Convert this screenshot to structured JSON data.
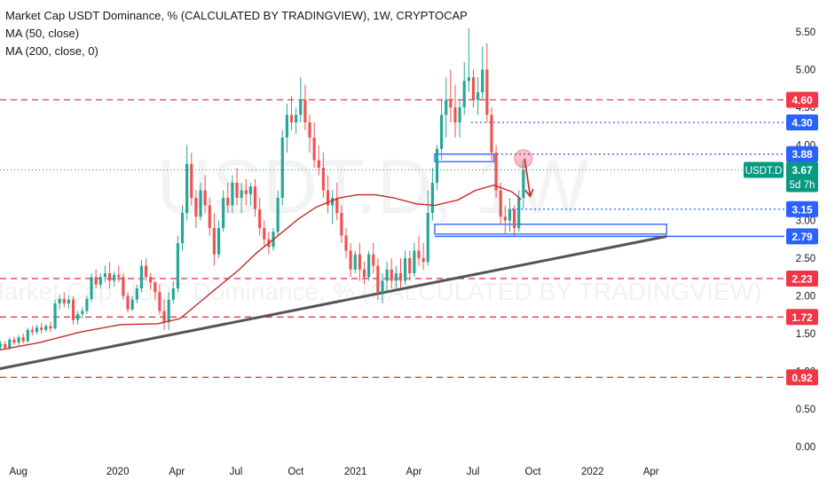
{
  "header": {
    "title": "Market Cap USDT Dominance, % (CALCULATED BY TRADINGVIEW), 1W, CRYPTOCAP",
    "indicators": [
      "MA (50, close)",
      "MA (200, close, 0)"
    ]
  },
  "watermark": {
    "symbol": "USDT.D, 1W",
    "description": "Market Cap USDT Dominance, % (CALCULATED BY TRADINGVIEW)"
  },
  "colors": {
    "up": "#26a69a",
    "down": "#ef5350",
    "ma_red": "#c62828",
    "level_red": "#f23645",
    "level_blue": "#2962ff",
    "trendline": "#555555",
    "current_badge": "#089981"
  },
  "chart_data": {
    "type": "candlestick",
    "timeframe": "1W",
    "symbol": "USDT.D",
    "ylim": [
      0,
      5.7
    ],
    "y_ticks": [
      "0.00",
      "0.50",
      "1.00",
      "1.50",
      "2.00",
      "2.50",
      "3.00",
      "3.50",
      "4.00",
      "4.50",
      "5.00",
      "5.50"
    ],
    "x_ticks": [
      "Aug",
      "2020",
      "Apr",
      "Jul",
      "Oct",
      "2021",
      "Apr",
      "Jul",
      "Oct",
      "2022",
      "Apr"
    ],
    "x_tick_dates": [
      "2019-08-01",
      "2020-01-01",
      "2020-04-01",
      "2020-07-01",
      "2020-10-01",
      "2021-01-01",
      "2021-04-01",
      "2021-07-01",
      "2021-10-01",
      "2022-01-01",
      "2022-04-01"
    ],
    "candles": [
      [
        "2019-07-01",
        1.33,
        1.4,
        1.29,
        1.36
      ],
      [
        "2019-07-08",
        1.36,
        1.4,
        1.28,
        1.31
      ],
      [
        "2019-07-15",
        1.31,
        1.45,
        1.28,
        1.42
      ],
      [
        "2019-07-22",
        1.42,
        1.46,
        1.35,
        1.38
      ],
      [
        "2019-07-29",
        1.38,
        1.48,
        1.34,
        1.45
      ],
      [
        "2019-08-05",
        1.45,
        1.5,
        1.37,
        1.4
      ],
      [
        "2019-08-12",
        1.4,
        1.58,
        1.38,
        1.55
      ],
      [
        "2019-08-19",
        1.55,
        1.6,
        1.48,
        1.52
      ],
      [
        "2019-08-26",
        1.52,
        1.62,
        1.49,
        1.58
      ],
      [
        "2019-09-02",
        1.58,
        1.64,
        1.5,
        1.55
      ],
      [
        "2019-09-09",
        1.55,
        1.63,
        1.52,
        1.6
      ],
      [
        "2019-09-16",
        1.6,
        1.66,
        1.52,
        1.57
      ],
      [
        "2019-09-23",
        1.57,
        1.95,
        1.55,
        1.9
      ],
      [
        "2019-09-30",
        1.9,
        2.02,
        1.82,
        1.96
      ],
      [
        "2019-10-07",
        1.96,
        2.05,
        1.85,
        1.9
      ],
      [
        "2019-10-14",
        1.9,
        2.0,
        1.83,
        1.95
      ],
      [
        "2019-10-21",
        1.95,
        2.0,
        1.62,
        1.68
      ],
      [
        "2019-10-28",
        1.68,
        1.8,
        1.62,
        1.76
      ],
      [
        "2019-11-04",
        1.76,
        1.85,
        1.7,
        1.8
      ],
      [
        "2019-11-11",
        1.8,
        2.0,
        1.76,
        1.96
      ],
      [
        "2019-11-18",
        1.96,
        2.3,
        1.92,
        2.25
      ],
      [
        "2019-11-25",
        2.25,
        2.35,
        2.1,
        2.15
      ],
      [
        "2019-12-02",
        2.15,
        2.3,
        2.1,
        2.25
      ],
      [
        "2019-12-09",
        2.25,
        2.4,
        2.18,
        2.3
      ],
      [
        "2019-12-16",
        2.3,
        2.45,
        2.1,
        2.2
      ],
      [
        "2019-12-23",
        2.2,
        2.32,
        2.12,
        2.28
      ],
      [
        "2019-12-30",
        2.28,
        2.4,
        2.18,
        2.25
      ],
      [
        "2020-01-06",
        2.25,
        2.3,
        1.95,
        2.0
      ],
      [
        "2020-01-13",
        2.0,
        2.05,
        1.78,
        1.82
      ],
      [
        "2020-01-20",
        1.82,
        2.0,
        1.8,
        1.95
      ],
      [
        "2020-01-27",
        1.95,
        2.15,
        1.9,
        2.1
      ],
      [
        "2020-02-03",
        2.1,
        2.48,
        2.05,
        2.4
      ],
      [
        "2020-02-10",
        2.4,
        2.5,
        2.2,
        2.25
      ],
      [
        "2020-02-17",
        2.25,
        2.3,
        2.08,
        2.18
      ],
      [
        "2020-02-24",
        2.18,
        2.2,
        1.95,
        2.05
      ],
      [
        "2020-03-02",
        2.05,
        2.15,
        1.75,
        1.8
      ],
      [
        "2020-03-09",
        1.8,
        1.95,
        1.55,
        1.65
      ],
      [
        "2020-03-16",
        1.65,
        2.05,
        1.55,
        1.95
      ],
      [
        "2020-03-23",
        1.95,
        2.2,
        1.9,
        2.1
      ],
      [
        "2020-03-30",
        2.1,
        2.8,
        2.05,
        2.7
      ],
      [
        "2020-04-06",
        2.7,
        3.2,
        2.6,
        3.1
      ],
      [
        "2020-04-13",
        3.1,
        4.0,
        3.0,
        3.75
      ],
      [
        "2020-04-20",
        3.75,
        3.9,
        3.2,
        3.3
      ],
      [
        "2020-04-27",
        3.3,
        3.4,
        2.9,
        3.05
      ],
      [
        "2020-05-04",
        3.05,
        3.5,
        3.0,
        3.4
      ],
      [
        "2020-05-11",
        3.4,
        3.6,
        3.1,
        3.2
      ],
      [
        "2020-05-18",
        3.2,
        3.3,
        2.8,
        2.9
      ],
      [
        "2020-05-25",
        2.9,
        3.1,
        2.4,
        2.55
      ],
      [
        "2020-06-01",
        2.55,
        3.0,
        2.5,
        2.9
      ],
      [
        "2020-06-08",
        2.9,
        3.4,
        2.85,
        3.3
      ],
      [
        "2020-06-15",
        3.3,
        3.5,
        3.1,
        3.2
      ],
      [
        "2020-06-22",
        3.2,
        3.6,
        3.1,
        3.5
      ],
      [
        "2020-06-29",
        3.5,
        3.7,
        3.2,
        3.3
      ],
      [
        "2020-07-06",
        3.3,
        3.5,
        3.1,
        3.4
      ],
      [
        "2020-07-13",
        3.4,
        3.55,
        3.2,
        3.35
      ],
      [
        "2020-07-20",
        3.35,
        3.5,
        3.2,
        3.45
      ],
      [
        "2020-07-27",
        3.45,
        3.55,
        3.05,
        3.15
      ],
      [
        "2020-08-03",
        3.15,
        3.3,
        2.8,
        2.9
      ],
      [
        "2020-08-10",
        2.9,
        3.0,
        2.65,
        2.75
      ],
      [
        "2020-08-17",
        2.75,
        2.85,
        2.55,
        2.65
      ],
      [
        "2020-08-24",
        2.65,
        2.9,
        2.6,
        2.85
      ],
      [
        "2020-08-31",
        2.85,
        3.4,
        2.8,
        3.3
      ],
      [
        "2020-09-07",
        3.3,
        4.2,
        3.2,
        4.1
      ],
      [
        "2020-09-14",
        4.1,
        4.55,
        3.9,
        4.4
      ],
      [
        "2020-09-21",
        4.4,
        4.65,
        4.2,
        4.3
      ],
      [
        "2020-09-28",
        4.3,
        4.5,
        4.15,
        4.4
      ],
      [
        "2020-10-05",
        4.4,
        4.9,
        4.3,
        4.6
      ],
      [
        "2020-10-12",
        4.6,
        4.8,
        4.2,
        4.3
      ],
      [
        "2020-10-19",
        4.3,
        4.4,
        3.9,
        4.1
      ],
      [
        "2020-10-26",
        4.1,
        4.3,
        3.7,
        3.8
      ],
      [
        "2020-11-02",
        3.8,
        4.0,
        3.6,
        3.7
      ],
      [
        "2020-11-09",
        3.7,
        3.9,
        3.3,
        3.4
      ],
      [
        "2020-11-16",
        3.4,
        3.6,
        3.1,
        3.2
      ],
      [
        "2020-11-23",
        3.2,
        3.4,
        2.95,
        3.3
      ],
      [
        "2020-11-30",
        3.3,
        3.5,
        3.0,
        3.1
      ],
      [
        "2020-12-07",
        3.1,
        3.2,
        2.7,
        2.8
      ],
      [
        "2020-12-14",
        2.8,
        2.9,
        2.5,
        2.6
      ],
      [
        "2020-12-21",
        2.6,
        2.7,
        2.25,
        2.35
      ],
      [
        "2020-12-28",
        2.35,
        2.6,
        2.3,
        2.55
      ],
      [
        "2021-01-04",
        2.55,
        2.7,
        2.2,
        2.35
      ],
      [
        "2021-01-11",
        2.35,
        2.45,
        2.15,
        2.25
      ],
      [
        "2021-01-18",
        2.25,
        2.6,
        2.2,
        2.55
      ],
      [
        "2021-01-25",
        2.55,
        2.7,
        2.3,
        2.4
      ],
      [
        "2021-02-01",
        2.4,
        2.5,
        1.95,
        2.05
      ],
      [
        "2021-02-08",
        2.05,
        2.3,
        1.9,
        2.2
      ],
      [
        "2021-02-15",
        2.2,
        2.45,
        2.05,
        2.35
      ],
      [
        "2021-02-22",
        2.35,
        2.5,
        2.1,
        2.2
      ],
      [
        "2021-03-01",
        2.2,
        2.4,
        2.1,
        2.3
      ],
      [
        "2021-03-08",
        2.3,
        2.5,
        2.1,
        2.2
      ],
      [
        "2021-03-15",
        2.2,
        2.6,
        2.15,
        2.5
      ],
      [
        "2021-03-22",
        2.5,
        2.6,
        2.2,
        2.3
      ],
      [
        "2021-03-29",
        2.3,
        2.7,
        2.25,
        2.6
      ],
      [
        "2021-04-05",
        2.6,
        2.8,
        2.4,
        2.5
      ],
      [
        "2021-04-12",
        2.5,
        2.7,
        2.35,
        2.45
      ],
      [
        "2021-04-19",
        2.45,
        3.4,
        2.4,
        3.1
      ],
      [
        "2021-04-26",
        3.1,
        3.7,
        3.0,
        3.5
      ],
      [
        "2021-05-03",
        3.5,
        4.0,
        3.4,
        3.95
      ],
      [
        "2021-05-10",
        3.95,
        4.6,
        3.8,
        4.4
      ],
      [
        "2021-05-17",
        4.4,
        4.9,
        4.1,
        4.6
      ],
      [
        "2021-05-24",
        4.6,
        5.0,
        4.3,
        4.5
      ],
      [
        "2021-05-31",
        4.5,
        4.8,
        4.1,
        4.3
      ],
      [
        "2021-06-07",
        4.3,
        4.6,
        4.1,
        4.5
      ],
      [
        "2021-06-14",
        4.5,
        5.1,
        4.4,
        4.85
      ],
      [
        "2021-06-21",
        4.85,
        5.55,
        4.7,
        4.9
      ],
      [
        "2021-06-28",
        4.9,
        5.0,
        4.5,
        4.6
      ],
      [
        "2021-07-05",
        4.6,
        4.9,
        4.4,
        4.7
      ],
      [
        "2021-07-12",
        4.7,
        5.3,
        4.6,
        5.0
      ],
      [
        "2021-07-19",
        5.0,
        5.35,
        4.3,
        4.4
      ],
      [
        "2021-07-26",
        4.4,
        4.5,
        3.8,
        3.9
      ],
      [
        "2021-08-02",
        3.9,
        4.0,
        3.3,
        3.4
      ],
      [
        "2021-08-09",
        3.4,
        3.5,
        2.95,
        3.05
      ],
      [
        "2021-08-16",
        3.05,
        3.2,
        2.82,
        3.0
      ],
      [
        "2021-08-23",
        3.0,
        3.3,
        2.85,
        3.15
      ],
      [
        "2021-08-30",
        3.15,
        3.2,
        2.8,
        2.9
      ],
      [
        "2021-09-06",
        2.9,
        3.4,
        2.85,
        3.3
      ],
      [
        "2021-09-13",
        3.3,
        3.8,
        3.15,
        3.67
      ]
    ],
    "ma_50": [
      [
        "2019-07-01",
        1.28
      ],
      [
        "2019-09-02",
        1.38
      ],
      [
        "2019-11-04",
        1.52
      ],
      [
        "2020-01-06",
        1.62
      ],
      [
        "2020-03-02",
        1.63
      ],
      [
        "2020-04-06",
        1.7
      ],
      [
        "2020-05-04",
        1.9
      ],
      [
        "2020-06-01",
        2.1
      ],
      [
        "2020-07-06",
        2.35
      ],
      [
        "2020-08-03",
        2.58
      ],
      [
        "2020-09-07",
        2.82
      ],
      [
        "2020-10-05",
        3.02
      ],
      [
        "2020-11-02",
        3.18
      ],
      [
        "2020-12-07",
        3.3
      ],
      [
        "2021-01-04",
        3.34
      ],
      [
        "2021-02-01",
        3.34
      ],
      [
        "2021-03-01",
        3.3
      ],
      [
        "2021-04-05",
        3.22
      ],
      [
        "2021-05-03",
        3.2
      ],
      [
        "2021-06-07",
        3.27
      ],
      [
        "2021-07-05",
        3.4
      ],
      [
        "2021-08-02",
        3.47
      ],
      [
        "2021-08-30",
        3.38
      ],
      [
        "2021-09-13",
        3.28
      ]
    ],
    "trendline": [
      [
        "2019-07-01",
        1.03
      ],
      [
        "2022-04-25",
        2.79
      ]
    ],
    "levels": [
      {
        "value": 4.6,
        "label": "4.60",
        "style": "dashed",
        "color": "red"
      },
      {
        "value": 2.23,
        "label": "2.23",
        "style": "dashed",
        "color": "red"
      },
      {
        "value": 1.72,
        "label": "1.72",
        "style": "dashed",
        "color": "red"
      },
      {
        "value": 0.92,
        "label": "0.92",
        "style": "dashed",
        "color": "red"
      },
      {
        "value": 4.3,
        "label": "4.30",
        "style": "dotted",
        "color": "blue",
        "from": "2021-06-28"
      },
      {
        "value": 3.88,
        "label": "3.88",
        "style": "dotted",
        "color": "blue",
        "from": "2021-05-03"
      },
      {
        "value": 3.15,
        "label": "3.15",
        "style": "dotted",
        "color": "blue",
        "from": "2021-08-30"
      },
      {
        "value": 2.79,
        "label": "2.79",
        "style": "solid",
        "color": "blue",
        "from": "2021-05-03"
      }
    ],
    "zones": [
      {
        "top": 3.88,
        "bottom": 3.78,
        "from": "2021-05-03",
        "to": "2021-08-02"
      },
      {
        "top": 2.95,
        "bottom": 2.82,
        "from": "2021-05-03",
        "to": "2022-04-25"
      }
    ],
    "current_price": {
      "symbol": "USDT.D",
      "value": "3.67",
      "countdown": "5d 7h"
    },
    "projection_arrow": {
      "from": [
        "2021-09-13",
        3.82
      ],
      "to": [
        "2021-09-27",
        3.32
      ]
    },
    "highlight_circle": {
      "date": "2021-09-13",
      "value": 3.82
    }
  }
}
